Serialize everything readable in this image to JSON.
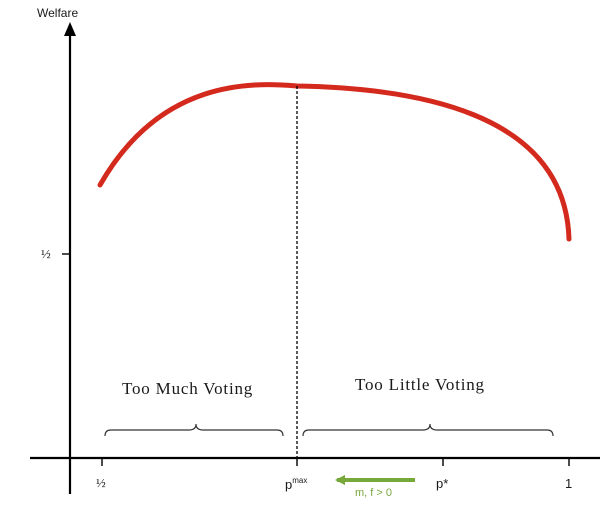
{
  "diagram": {
    "y_axis_label": "Welfare",
    "y_tick_half": "½",
    "x_ticks": {
      "half": "½",
      "pmax_base": "p",
      "pmax_sup": "max",
      "pstar": "p*",
      "one": "1"
    },
    "regions": {
      "left": "Too Much Voting",
      "right": "Too Little Voting"
    },
    "shift_arrow_label": "m, f > 0",
    "colors": {
      "curve": "#d42a1e",
      "arrow": "#77a83a",
      "axis": "#000000"
    }
  }
}
